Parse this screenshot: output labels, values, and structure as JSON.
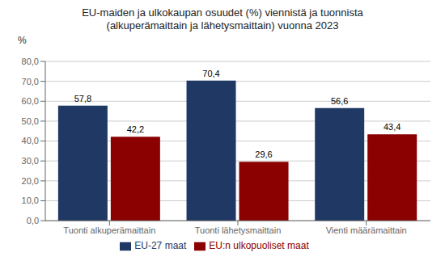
{
  "chart_data": {
    "type": "bar",
    "title": "EU-maiden ja ulkokaupan osuudet (%) viennistä ja tuonnista\n(alkuperämaittain ja lähetysmaittain) vuonna 2023",
    "ylabel": "%",
    "categories": [
      "Tuonti alkuperämaittain",
      "Tuonti lähetysmaittain",
      "Vienti määrämaittain"
    ],
    "series": [
      {
        "name": "EU-27 maat",
        "color": "#1F3864",
        "values": [
          57.8,
          70.4,
          56.6
        ],
        "value_labels": [
          "57,8",
          "70,4",
          "56,6"
        ]
      },
      {
        "name": "EU:n ulkopuoliset maat",
        "color": "#8B0000",
        "values": [
          42.2,
          29.6,
          43.4
        ],
        "value_labels": [
          "42,2",
          "29,6",
          "43,4"
        ]
      }
    ],
    "ylim": [
      0,
      80
    ],
    "yticks": [
      {
        "value": 0,
        "label": "0,0"
      },
      {
        "value": 10,
        "label": "10,0"
      },
      {
        "value": 20,
        "label": "20,0"
      },
      {
        "value": 30,
        "label": "30,0"
      },
      {
        "value": 40,
        "label": "40,0"
      },
      {
        "value": 50,
        "label": "50,0"
      },
      {
        "value": 60,
        "label": "60,0"
      },
      {
        "value": 70,
        "label": "70,0"
      },
      {
        "value": 80,
        "label": "80,0"
      }
    ],
    "grid": true,
    "legend": "bottom",
    "data_labels": true
  }
}
